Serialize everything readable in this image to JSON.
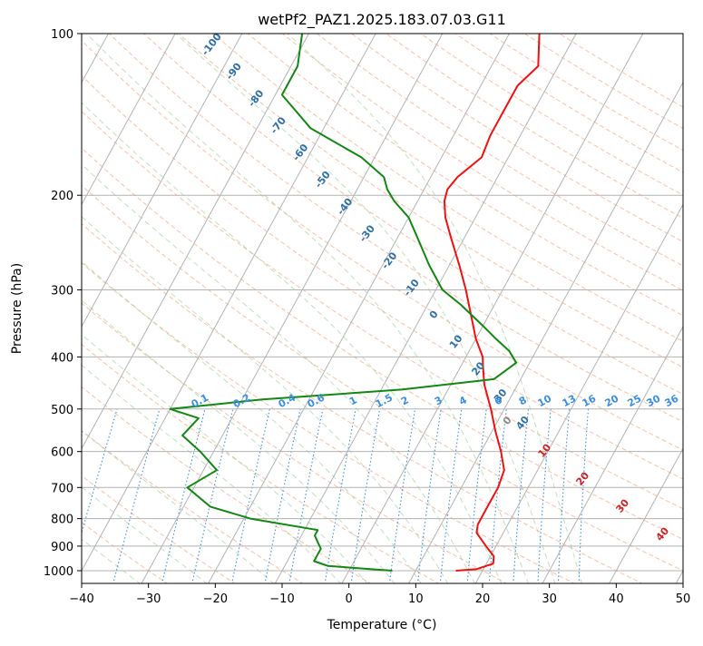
{
  "title": "wetPf2_PAZ1.2025.183.07.03.G11",
  "chart_data": {
    "type": "skew-t",
    "title": "wetPf2_PAZ1.2025.183.07.03.G11",
    "xlabel": "Temperature (°C)",
    "ylabel": "Pressure (hPa)",
    "xlim": [
      -40,
      50
    ],
    "ylim": [
      1050,
      100
    ],
    "y_scale": "log",
    "grid": true,
    "x_ticks": [
      -40,
      -30,
      -20,
      -10,
      0,
      10,
      20,
      30,
      40,
      50
    ],
    "x_tick_labels": [
      "−40",
      "−30",
      "−20",
      "−10",
      "0",
      "10",
      "20",
      "30",
      "40",
      "50"
    ],
    "y_ticks": [
      100,
      200,
      300,
      400,
      500,
      600,
      700,
      800,
      900,
      1000
    ],
    "y_tick_labels": [
      "100",
      "200",
      "300",
      "400",
      "500",
      "600",
      "700",
      "800",
      "900",
      "1000"
    ],
    "series": [
      {
        "color": "#ee1111",
        "pressure": [
          1000,
          993,
          970,
          940,
          910,
          880,
          850,
          820,
          790,
          750,
          700,
          650,
          600,
          550,
          500,
          450,
          420,
          400,
          370,
          330,
          300,
          270,
          240,
          220,
          205,
          195,
          185,
          170,
          155,
          140,
          125,
          115,
          100
        ],
        "temperature": [
          16,
          19,
          21,
          20.5,
          19,
          17.5,
          16,
          15.5,
          15.5,
          15.5,
          15.5,
          15,
          13,
          10.5,
          8,
          5,
          3.5,
          2.5,
          0,
          -3,
          -5.5,
          -8.5,
          -12,
          -14.5,
          -16,
          -16.5,
          -16,
          -14,
          -14.5,
          -14.5,
          -14.5,
          -13,
          -15.5
        ]
      },
      {
        "color": "#118811",
        "pressure": [
          1000,
          980,
          960,
          935,
          910,
          885,
          860,
          840,
          800,
          760,
          700,
          650,
          600,
          560,
          520,
          500,
          480,
          460,
          440,
          410,
          390,
          370,
          350,
          320,
          300,
          270,
          240,
          220,
          205,
          195,
          185,
          170,
          150,
          130,
          115,
          100
        ],
        "temperature": [
          6.5,
          -3.5,
          -6,
          -6,
          -6,
          -7,
          -8,
          -8,
          -19,
          -26,
          -31,
          -28,
          -32,
          -36,
          -35,
          -40,
          -27,
          -7,
          6,
          8,
          6,
          3,
          0,
          -5,
          -9,
          -13,
          -17,
          -20,
          -23.5,
          -25.5,
          -27,
          -32,
          -42,
          -49,
          -49,
          -51
        ]
      }
    ],
    "dry_adiabat_labels": [
      "-100",
      "-90",
      "-80",
      "-70",
      "-60",
      "-50",
      "-40",
      "-30",
      "-20",
      "-10",
      "0",
      "10",
      "20",
      "30",
      "40"
    ],
    "mixing_ratio_labels": [
      "0.1",
      "0.2",
      "0.4",
      "0.6",
      "1",
      "1.5",
      "2",
      "3",
      "4",
      "6",
      "8",
      "10",
      "13",
      "16",
      "20",
      "25",
      "30",
      "36"
    ]
  }
}
